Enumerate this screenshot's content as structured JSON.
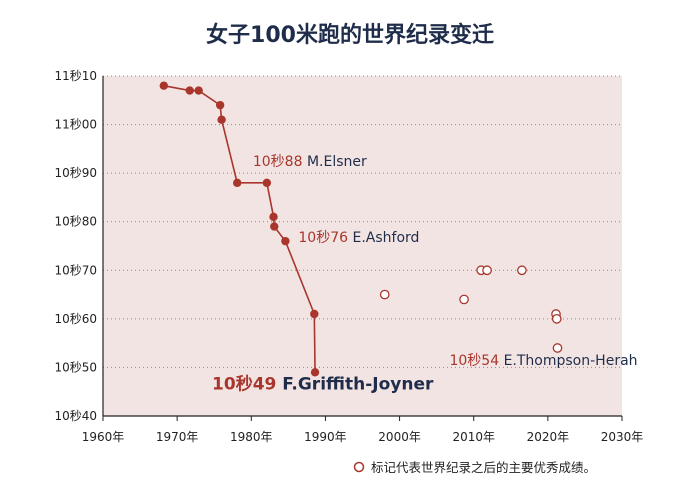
{
  "chart_data": {
    "type": "line",
    "title": "女子100米跑的世界纪录变迁",
    "xlabel": "",
    "ylabel": "",
    "xlim": [
      1960,
      2030
    ],
    "ylim": [
      10.4,
      11.1
    ],
    "x_ticks": [
      1960,
      1970,
      1980,
      1990,
      2000,
      2010,
      2020,
      2030
    ],
    "x_tick_labels": [
      "1960年",
      "1970年",
      "1980年",
      "1990年",
      "2000年",
      "2010年",
      "2020年",
      "2030年"
    ],
    "y_ticks": [
      10.4,
      10.5,
      10.6,
      10.7,
      10.8,
      10.9,
      11.0,
      11.1
    ],
    "y_tick_labels": [
      "10秒40",
      "10秒50",
      "10秒60",
      "10秒70",
      "10秒80",
      "10秒90",
      "11秒00",
      "11秒10"
    ],
    "grid": "horizontal dotted",
    "colors": {
      "series": "#a8362c",
      "plot_background": "#f3e4e4",
      "title": "#1f2d4a",
      "name_text": "#1f2d4a"
    },
    "series": [
      {
        "style": "line-with-filled-markers",
        "points": [
          {
            "x": 1968.2,
            "y": 11.08
          },
          {
            "x": 1971.7,
            "y": 11.07
          },
          {
            "x": 1972.9,
            "y": 11.07
          },
          {
            "x": 1975.8,
            "y": 11.04
          },
          {
            "x": 1976.0,
            "y": 11.01
          },
          {
            "x": 1978.1,
            "y": 10.88
          },
          {
            "x": 1982.1,
            "y": 10.88
          },
          {
            "x": 1983.0,
            "y": 10.81
          },
          {
            "x": 1983.1,
            "y": 10.79
          },
          {
            "x": 1984.6,
            "y": 10.76
          },
          {
            "x": 1988.5,
            "y": 10.61
          },
          {
            "x": 1988.6,
            "y": 10.49
          }
        ]
      },
      {
        "style": "hollow-markers",
        "points": [
          {
            "x": 1998.0,
            "y": 10.65
          },
          {
            "x": 2008.7,
            "y": 10.64
          },
          {
            "x": 2011.0,
            "y": 10.7
          },
          {
            "x": 2011.8,
            "y": 10.7
          },
          {
            "x": 2016.5,
            "y": 10.7
          },
          {
            "x": 2021.1,
            "y": 10.61
          },
          {
            "x": 2021.2,
            "y": 10.6
          },
          {
            "x": 2021.3,
            "y": 10.54
          }
        ]
      }
    ],
    "annotations": [
      {
        "time": "10秒88",
        "name": "M.Elsner",
        "x": 1982.1,
        "y": 10.88
      },
      {
        "time": "10秒76",
        "name": "E.Ashford",
        "x": 1984.6,
        "y": 10.76
      },
      {
        "time": "10秒49",
        "name": "F.Griffith-Joyner",
        "x": 1988.6,
        "y": 10.49
      },
      {
        "time": "10秒54",
        "name": "E.Thompson-Herah",
        "x": 2021.3,
        "y": 10.54
      }
    ],
    "legend": {
      "position": "bottom-right",
      "text": "标记代表世界纪录之后的主要优秀成绩。"
    }
  }
}
